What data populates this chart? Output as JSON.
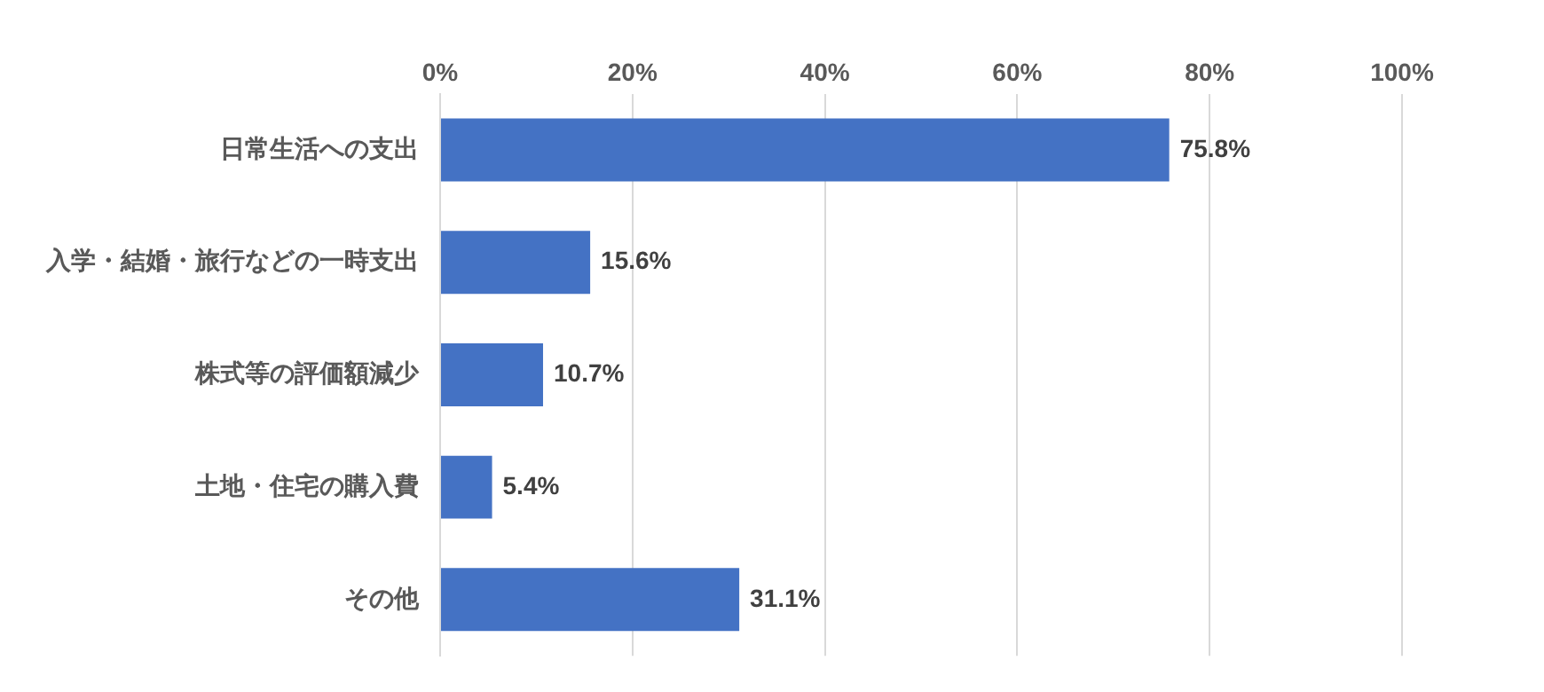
{
  "chart_data": {
    "type": "bar",
    "orientation": "horizontal",
    "categories": [
      "日常生活への支出",
      "入学・結婚・旅行などの一時支出",
      "株式等の評価額減少",
      "土地・住宅の購入費",
      "その他"
    ],
    "values": [
      75.8,
      15.6,
      10.7,
      5.4,
      31.1
    ],
    "value_labels": [
      "75.8%",
      "15.6%",
      "10.7%",
      "5.4%",
      "31.1%"
    ],
    "color": "#4472c4",
    "xlim": [
      0,
      100
    ],
    "xticks": [
      {
        "value": 0,
        "label": "0%"
      },
      {
        "value": 20,
        "label": "20%"
      },
      {
        "value": 40,
        "label": "40%"
      },
      {
        "value": 60,
        "label": "60%"
      },
      {
        "value": 80,
        "label": "80%"
      },
      {
        "value": 100,
        "label": "100%"
      }
    ],
    "grid": "x",
    "legend": false
  }
}
